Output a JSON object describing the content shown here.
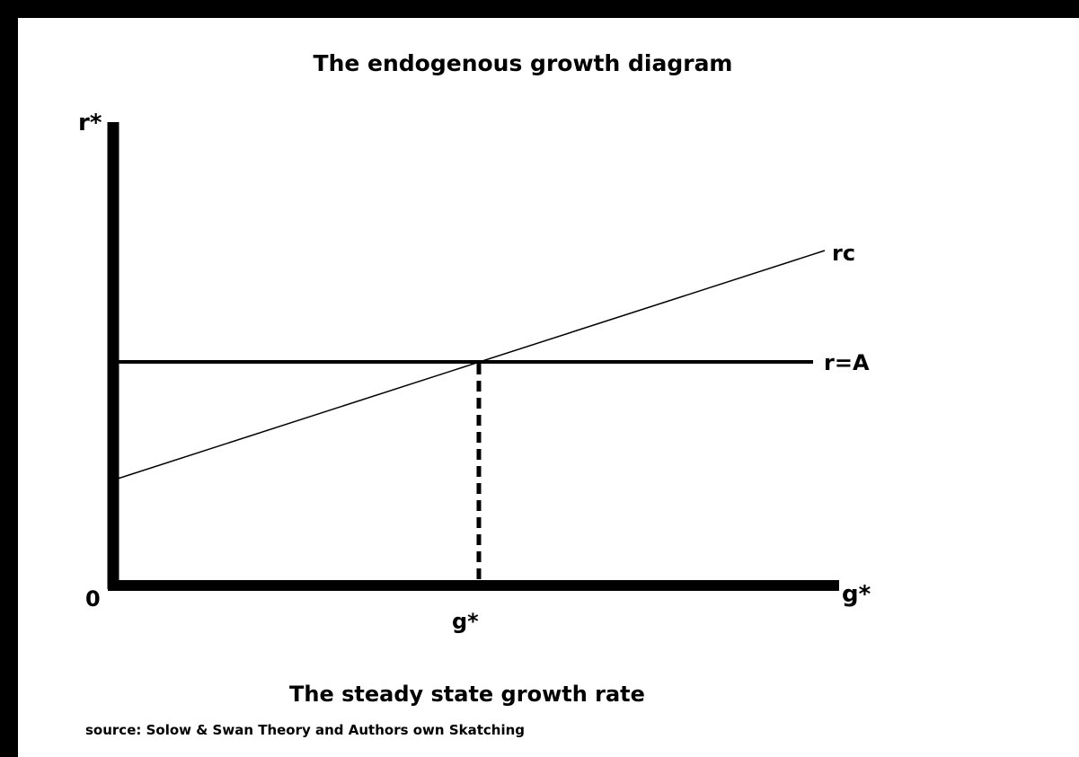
{
  "title": "The endogenous growth diagram",
  "subtitle": "The steady state growth rate",
  "source": "source: Solow & Swan Theory and Authors own Skatching",
  "axes": {
    "y_label": "r*",
    "x_label": "g*",
    "origin_label": "0"
  },
  "lines": {
    "rc_label": "rc",
    "ra_label": "r=A"
  },
  "equilibrium": {
    "g_label": "g*"
  },
  "colors": {
    "ink": "#000000",
    "background": "#ffffff"
  }
}
